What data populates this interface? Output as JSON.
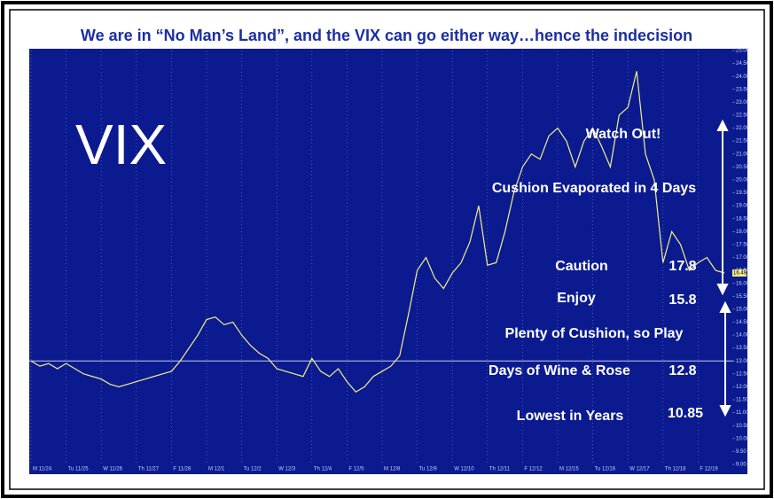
{
  "chart_data": {
    "type": "line",
    "title": "We are in “No Man’s Land”, and the VIX can go either way…hence the indecision",
    "big_label": "VIX",
    "x": [
      0,
      0.25,
      0.5,
      0.75,
      1,
      1.25,
      1.5,
      1.75,
      2,
      2.25,
      2.5,
      2.75,
      3,
      3.25,
      3.5,
      3.75,
      4,
      4.25,
      4.5,
      4.75,
      5,
      5.25,
      5.5,
      5.75,
      6,
      6.25,
      6.5,
      6.75,
      7,
      7.25,
      7.5,
      7.75,
      8,
      8.25,
      8.5,
      8.75,
      9,
      9.25,
      9.5,
      9.75,
      10,
      10.25,
      10.5,
      10.75,
      11,
      11.25,
      11.5,
      11.75,
      12,
      12.25,
      12.5,
      12.75,
      13,
      13.25,
      13.5,
      13.75,
      14,
      14.25,
      14.5,
      14.75,
      15,
      15.25,
      15.5,
      15.75,
      16,
      16.25,
      16.5,
      16.75,
      17,
      17.25,
      17.5,
      17.75,
      18,
      18.25,
      18.5,
      18.75,
      19,
      19.25,
      19.5,
      19.75
    ],
    "series": [
      {
        "name": "VIX",
        "color": "#f5ee8a",
        "values": [
          13.0,
          12.8,
          12.9,
          12.7,
          12.9,
          12.7,
          12.5,
          12.4,
          12.3,
          12.1,
          12.0,
          12.1,
          12.2,
          12.3,
          12.4,
          12.5,
          12.6,
          13.0,
          13.5,
          14.0,
          14.6,
          14.7,
          14.4,
          14.5,
          14.0,
          13.6,
          13.3,
          13.1,
          12.7,
          12.6,
          12.5,
          12.4,
          13.1,
          12.6,
          12.4,
          12.7,
          12.2,
          11.8,
          12.0,
          12.4,
          12.6,
          12.8,
          13.2,
          14.8,
          16.5,
          17.0,
          16.2,
          15.8,
          16.4,
          16.8,
          17.6,
          19.0,
          16.7,
          16.8,
          18.0,
          19.5,
          20.5,
          21.0,
          20.8,
          21.7,
          22.0,
          21.5,
          20.5,
          21.5,
          22.0,
          21.3,
          20.5,
          22.5,
          22.8,
          24.2,
          21.0,
          20.0,
          16.8,
          18.0,
          17.5,
          16.5,
          16.8,
          17.0,
          16.5,
          16.4
        ]
      }
    ],
    "last_value_label": "16.49",
    "reference_line": 13,
    "xlim": [
      0,
      20
    ],
    "xticks": [
      {
        "value": 0,
        "label": "M 11/24"
      },
      {
        "value": 1,
        "label": "Tu 11/25"
      },
      {
        "value": 2,
        "label": "W 11/26"
      },
      {
        "value": 3,
        "label": "Th 11/27"
      },
      {
        "value": 4,
        "label": "F 11/28"
      },
      {
        "value": 5,
        "label": "M 12/1"
      },
      {
        "value": 6,
        "label": "Tu 12/2"
      },
      {
        "value": 7,
        "label": "W 12/3"
      },
      {
        "value": 8,
        "label": "Th 12/4"
      },
      {
        "value": 9,
        "label": "F 12/5"
      },
      {
        "value": 10,
        "label": "M 12/8"
      },
      {
        "value": 11,
        "label": "Tu 12/9"
      },
      {
        "value": 12,
        "label": "W 12/10"
      },
      {
        "value": 13,
        "label": "Th 12/11"
      },
      {
        "value": 14,
        "label": "F 12/12"
      },
      {
        "value": 15,
        "label": "M 12/15"
      },
      {
        "value": 16,
        "label": "Tu 12/16"
      },
      {
        "value": 17,
        "label": "W 12/17"
      },
      {
        "value": 18,
        "label": "Th 12/18"
      },
      {
        "value": 19,
        "label": "F 12/19"
      }
    ],
    "ylim": [
      9,
      25
    ],
    "yticks": [
      {
        "value": 9,
        "label": "9.00"
      },
      {
        "value": 9.5,
        "label": "9.50"
      },
      {
        "value": 10,
        "label": "10.00"
      },
      {
        "value": 10.5,
        "label": "10.50"
      },
      {
        "value": 11,
        "label": "11.00"
      },
      {
        "value": 11.5,
        "label": "11.50"
      },
      {
        "value": 12,
        "label": "12.00"
      },
      {
        "value": 12.5,
        "label": "12.50"
      },
      {
        "value": 13,
        "label": "13.00"
      },
      {
        "value": 13.5,
        "label": "13.50"
      },
      {
        "value": 14,
        "label": "14.00"
      },
      {
        "value": 14.5,
        "label": "14.50"
      },
      {
        "value": 15,
        "label": "15.00"
      },
      {
        "value": 15.5,
        "label": "15.50"
      },
      {
        "value": 16,
        "label": "16.00"
      },
      {
        "value": 16.5,
        "label": "16.50"
      },
      {
        "value": 17,
        "label": "17.00"
      },
      {
        "value": 17.5,
        "label": "17.50"
      },
      {
        "value": 18,
        "label": "18.00"
      },
      {
        "value": 18.5,
        "label": "18.50"
      },
      {
        "value": 19,
        "label": "19.00"
      },
      {
        "value": 19.5,
        "label": "19.50"
      },
      {
        "value": 20,
        "label": "20.00"
      },
      {
        "value": 20.5,
        "label": "20.50"
      },
      {
        "value": 21,
        "label": "21.00"
      },
      {
        "value": 21.5,
        "label": "21.50"
      },
      {
        "value": 22,
        "label": "22.00"
      },
      {
        "value": 22.5,
        "label": "22.50"
      },
      {
        "value": 23,
        "label": "23.00"
      },
      {
        "value": 23.5,
        "label": "23.50"
      },
      {
        "value": 24,
        "label": "24.00"
      },
      {
        "value": 24.5,
        "label": "24.50"
      },
      {
        "value": 25,
        "label": "25.00"
      }
    ],
    "annotations": {
      "watch_out": "Watch Out!",
      "cushion_evaporated": "Cushion Evaporated in 4 Days",
      "caution": "Caution",
      "caution_level": "17.8",
      "enjoy": "Enjoy",
      "enjoy_level": "15.8",
      "plenty": "Plenty of Cushion, so Play",
      "wine_rose": "Days of Wine & Rose",
      "wine_rose_level": "12.8",
      "lowest": "Lowest in Years",
      "lowest_level": "10.85"
    }
  }
}
